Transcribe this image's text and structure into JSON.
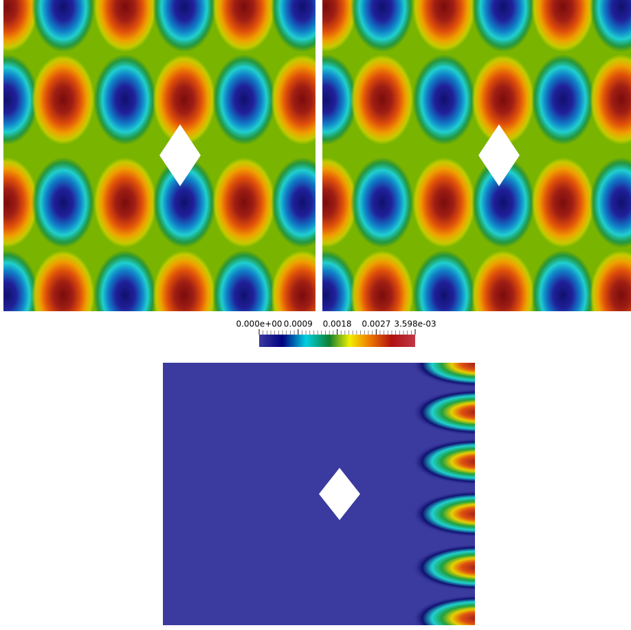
{
  "colorbar": {
    "range": [
      0,
      0.003598
    ],
    "ticks": [
      {
        "value": 0,
        "label": "0.000e+00"
      },
      0.0009,
      0.0018,
      0.0027,
      {
        "value": 0.003598,
        "label": "3.598e-03"
      }
    ]
  }
}
